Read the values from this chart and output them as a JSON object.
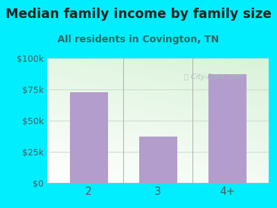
{
  "title": "Median family income by family size",
  "subtitle": "All residents in Covington, TN",
  "categories": [
    "2",
    "3",
    "4+"
  ],
  "values": [
    73000,
    37000,
    87000
  ],
  "bar_color": "#b39dcc",
  "bg_color": "#00eeff",
  "title_color": "#222222",
  "subtitle_color": "#336666",
  "tick_color": "#555555",
  "ylim": [
    0,
    100000
  ],
  "yticks": [
    0,
    25000,
    50000,
    75000,
    100000
  ],
  "ytick_labels": [
    "$0",
    "$25k",
    "$50k",
    "$75k",
    "$100k"
  ],
  "title_fontsize": 13.5,
  "subtitle_fontsize": 10,
  "figsize": [
    4.0,
    3.0
  ],
  "dpi": 100,
  "hline_color": "#ccddcc",
  "watermark_color": "#aabbbb"
}
